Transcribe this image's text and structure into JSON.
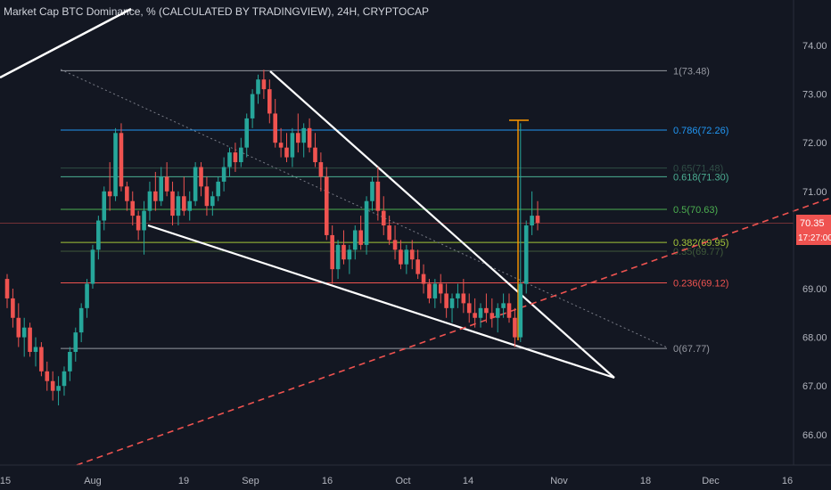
{
  "header": {
    "title": "Market Cap BTC Dominance, % (CALCULATED BY TRADINGVIEW), 24H, CRYPTOCAP"
  },
  "price_tag": {
    "value": "70.35",
    "timer": "17:27:00"
  },
  "colors": {
    "background": "#131722",
    "up": "#26a69a",
    "down": "#ef5350",
    "axis_text": "#b2b5be",
    "price_tag": "#ef5350"
  },
  "chart_data": {
    "type": "candlestick",
    "title": "Market Cap BTC Dominance, % (CALCULATED BY TRADINGVIEW), 24H, CRYPTOCAP",
    "ylim": [
      65.3,
      75.0
    ],
    "y_ticks": [
      "74.00",
      "73.00",
      "72.00",
      "71.00",
      "70.00",
      "69.00",
      "68.00",
      "67.00",
      "66.00"
    ],
    "x_ticks": [
      "15",
      "Aug",
      "19",
      "Sep",
      "16",
      "Oct",
      "14",
      "Nov",
      "18",
      "Dec",
      "16"
    ],
    "fibonacci": [
      {
        "label": "1(73.48)",
        "value": 73.48,
        "color": "#9598a1"
      },
      {
        "label": "0.786(72.26)",
        "value": 72.26,
        "color": "#2196f3"
      },
      {
        "label": "0.65(71.48)",
        "value": 71.48,
        "color": "#2f4d45"
      },
      {
        "label": "0.618(71.30)",
        "value": 71.3,
        "color": "#4caf93"
      },
      {
        "label": "0.5(70.63)",
        "value": 70.63,
        "color": "#4caf50"
      },
      {
        "label": "0.382(69.95)",
        "value": 69.95,
        "color": "#a4c639"
      },
      {
        "label": "0.35(69.77)",
        "value": 69.77,
        "color": "#3f5a3a"
      },
      {
        "label": "0.236(69.12)",
        "value": 69.12,
        "color": "#ef5350"
      },
      {
        "label": "0(67.77)",
        "value": 67.77,
        "color": "#9598a1"
      }
    ],
    "current_price": 70.35,
    "candles_ohlc": [
      [
        69.2,
        69.3,
        68.6,
        68.8
      ],
      [
        68.8,
        69.0,
        68.2,
        68.4
      ],
      [
        68.4,
        68.7,
        67.8,
        68.0
      ],
      [
        68.0,
        68.4,
        67.6,
        68.2
      ],
      [
        68.2,
        68.3,
        67.6,
        67.7
      ],
      [
        67.7,
        68.0,
        67.4,
        67.8
      ],
      [
        67.8,
        67.9,
        67.2,
        67.3
      ],
      [
        67.3,
        67.5,
        66.9,
        67.1
      ],
      [
        67.1,
        67.3,
        66.7,
        66.9
      ],
      [
        66.9,
        67.2,
        66.6,
        67.0
      ],
      [
        67.0,
        67.4,
        66.8,
        67.3
      ],
      [
        67.3,
        67.8,
        67.1,
        67.7
      ],
      [
        67.7,
        68.2,
        67.5,
        68.1
      ],
      [
        68.1,
        68.7,
        67.9,
        68.6
      ],
      [
        68.6,
        69.2,
        68.4,
        69.1
      ],
      [
        69.1,
        69.9,
        69.0,
        69.8
      ],
      [
        69.8,
        70.5,
        69.6,
        70.4
      ],
      [
        70.4,
        71.1,
        70.2,
        71.0
      ],
      [
        71.0,
        71.6,
        70.6,
        70.9
      ],
      [
        70.9,
        72.3,
        70.8,
        72.2
      ],
      [
        72.2,
        72.4,
        71.0,
        71.1
      ],
      [
        71.1,
        71.2,
        70.6,
        70.8
      ],
      [
        70.8,
        71.0,
        70.3,
        70.5
      ],
      [
        70.5,
        70.6,
        70.0,
        70.2
      ],
      [
        70.2,
        70.8,
        69.7,
        70.6
      ],
      [
        70.6,
        71.2,
        70.4,
        71.0
      ],
      [
        71.0,
        71.4,
        70.6,
        70.8
      ],
      [
        70.8,
        71.5,
        70.7,
        71.3
      ],
      [
        71.3,
        71.6,
        70.9,
        71.0
      ],
      [
        71.0,
        71.2,
        70.3,
        70.5
      ],
      [
        70.5,
        71.0,
        70.3,
        70.9
      ],
      [
        70.9,
        71.3,
        70.5,
        70.6
      ],
      [
        70.6,
        71.0,
        70.4,
        70.8
      ],
      [
        70.8,
        71.6,
        70.7,
        71.5
      ],
      [
        71.5,
        71.6,
        70.9,
        71.1
      ],
      [
        71.1,
        71.3,
        70.5,
        70.7
      ],
      [
        70.7,
        71.0,
        70.5,
        70.9
      ],
      [
        70.9,
        71.3,
        70.8,
        71.2
      ],
      [
        71.2,
        71.7,
        71.0,
        71.5
      ],
      [
        71.5,
        71.9,
        71.3,
        71.8
      ],
      [
        71.8,
        72.0,
        71.4,
        71.6
      ],
      [
        71.6,
        72.1,
        71.5,
        71.9
      ],
      [
        71.9,
        72.6,
        71.7,
        72.5
      ],
      [
        72.5,
        73.1,
        72.3,
        73.0
      ],
      [
        73.0,
        73.4,
        72.8,
        73.3
      ],
      [
        73.3,
        73.5,
        72.9,
        73.1
      ],
      [
        73.1,
        73.3,
        72.4,
        72.6
      ],
      [
        72.6,
        72.9,
        71.9,
        72.0
      ],
      [
        72.0,
        72.3,
        71.7,
        71.9
      ],
      [
        71.9,
        72.2,
        71.6,
        71.7
      ],
      [
        71.7,
        72.3,
        71.5,
        72.2
      ],
      [
        72.2,
        72.6,
        71.8,
        72.0
      ],
      [
        72.0,
        72.4,
        71.7,
        72.3
      ],
      [
        72.3,
        72.5,
        71.8,
        71.9
      ],
      [
        71.9,
        72.2,
        71.5,
        71.6
      ],
      [
        71.6,
        71.8,
        71.0,
        71.3
      ],
      [
        71.3,
        71.5,
        70.0,
        70.1
      ],
      [
        70.1,
        70.3,
        69.1,
        69.4
      ],
      [
        69.4,
        70.0,
        69.2,
        69.9
      ],
      [
        69.9,
        70.2,
        69.5,
        69.6
      ],
      [
        69.6,
        69.9,
        69.3,
        69.8
      ],
      [
        69.8,
        70.3,
        69.6,
        70.2
      ],
      [
        70.2,
        70.5,
        69.8,
        69.9
      ],
      [
        69.9,
        70.9,
        69.7,
        70.8
      ],
      [
        70.8,
        71.3,
        70.6,
        71.2
      ],
      [
        71.2,
        71.5,
        70.4,
        70.6
      ],
      [
        70.6,
        70.9,
        70.1,
        70.3
      ],
      [
        70.3,
        70.5,
        69.9,
        70.0
      ],
      [
        70.0,
        70.3,
        69.6,
        69.8
      ],
      [
        69.8,
        70.0,
        69.4,
        69.5
      ],
      [
        69.5,
        69.9,
        69.3,
        69.8
      ],
      [
        69.8,
        70.0,
        69.4,
        69.6
      ],
      [
        69.6,
        69.8,
        69.2,
        69.3
      ],
      [
        69.3,
        69.5,
        68.9,
        69.1
      ],
      [
        69.1,
        69.2,
        68.7,
        68.8
      ],
      [
        68.8,
        69.2,
        68.6,
        69.1
      ],
      [
        69.1,
        69.3,
        68.7,
        68.9
      ],
      [
        68.9,
        69.1,
        68.4,
        68.6
      ],
      [
        68.6,
        68.9,
        68.3,
        68.8
      ],
      [
        68.8,
        69.1,
        68.6,
        68.9
      ],
      [
        68.9,
        69.2,
        68.5,
        68.7
      ],
      [
        68.7,
        68.9,
        68.3,
        68.5
      ],
      [
        68.5,
        68.8,
        68.2,
        68.4
      ],
      [
        68.4,
        68.7,
        68.2,
        68.6
      ],
      [
        68.6,
        68.9,
        68.3,
        68.5
      ],
      [
        68.5,
        68.8,
        68.2,
        68.4
      ],
      [
        68.4,
        68.7,
        68.1,
        68.6
      ],
      [
        68.6,
        68.9,
        68.4,
        68.7
      ],
      [
        68.7,
        68.9,
        68.3,
        68.4
      ],
      [
        68.4,
        68.6,
        67.8,
        68.0
      ],
      [
        68.0,
        72.4,
        67.9,
        69.1
      ],
      [
        69.1,
        70.4,
        68.9,
        70.3
      ],
      [
        70.3,
        71.0,
        70.1,
        70.5
      ],
      [
        70.5,
        70.8,
        70.2,
        70.35
      ]
    ]
  }
}
